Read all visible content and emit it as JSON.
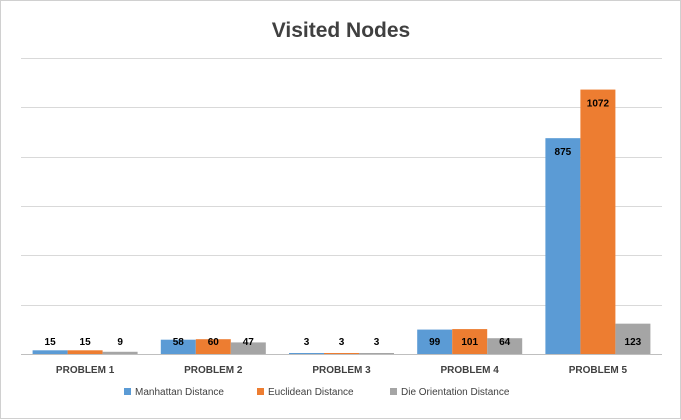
{
  "chart_data": {
    "type": "bar",
    "title": "Visited Nodes",
    "xlabel": "",
    "ylabel": "",
    "categories": [
      "PROBLEM 1",
      "PROBLEM 2",
      "PROBLEM 3",
      "PROBLEM 4",
      "PROBLEM 5"
    ],
    "series": [
      {
        "name": "Manhattan Distance",
        "color": "#5b9bd5",
        "values": [
          15,
          58,
          3,
          99,
          875
        ]
      },
      {
        "name": "Euclidean Distance",
        "color": "#ed7d31",
        "values": [
          15,
          60,
          3,
          101,
          1072
        ]
      },
      {
        "name": "Die Orientation Distance",
        "color": "#a5a5a5",
        "values": [
          9,
          47,
          3,
          64,
          123
        ]
      }
    ],
    "ylim": [
      0,
      1200
    ],
    "gridlines": true,
    "y_tick_labels_visible": false,
    "data_labels": true,
    "legend_position": "bottom"
  }
}
